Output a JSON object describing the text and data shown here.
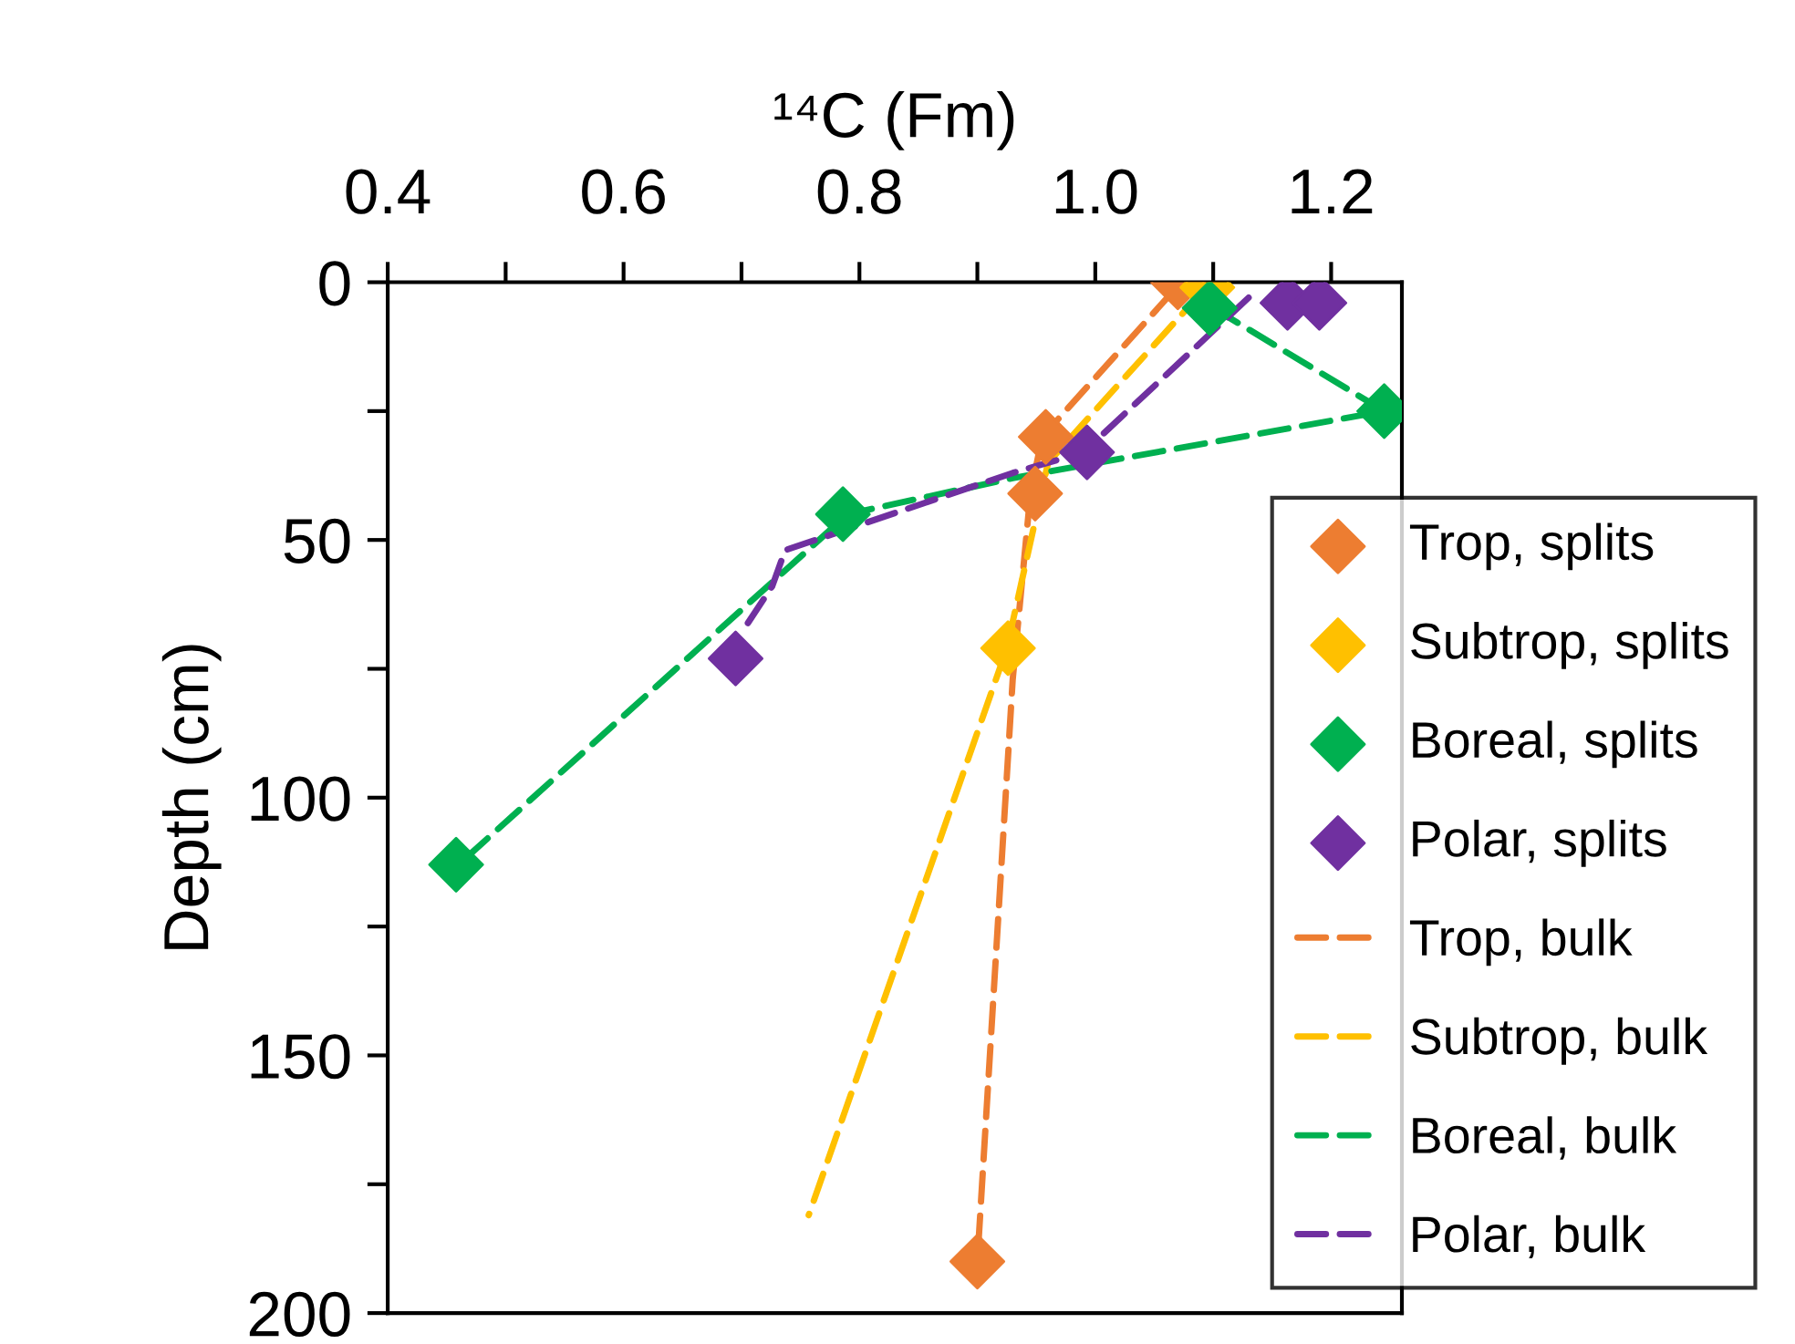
{
  "chart_data": {
    "type": "scatter",
    "xlabel": "¹⁴C (Fm)",
    "ylabel": "Depth (cm)",
    "xlim": [
      0.4,
      1.26
    ],
    "ylim": [
      200,
      0
    ],
    "xticks": [
      0.4,
      {
        "value": 0.5,
        "label": null
      },
      0.6,
      {
        "value": 0.7,
        "label": null
      },
      0.8,
      {
        "value": 0.9,
        "label": null
      },
      "1.0",
      {
        "value": 1.1,
        "label": null
      },
      1.2
    ],
    "yticks": [
      0,
      {
        "value": 25,
        "label": null
      },
      50,
      {
        "value": 75,
        "label": null
      },
      100,
      {
        "value": 125,
        "label": null
      },
      150,
      {
        "value": 175,
        "label": null
      },
      200
    ],
    "grid": false,
    "legend": "bottom right",
    "series": [
      {
        "name": "Trop, splits",
        "marker": "diamond",
        "color": "#ed7d31",
        "x": [
          1.07,
          0.958,
          0.949,
          0.9
        ],
        "values": [
          0,
          30,
          41,
          190
        ]
      },
      {
        "name": "Subtrop, splits",
        "marker": "diamond",
        "color": "#ffc000",
        "x": [
          1.095,
          0.926
        ],
        "values": [
          1,
          71
        ]
      },
      {
        "name": "Boreal, splits",
        "marker": "diamond",
        "color": "#00b050",
        "x": [
          1.097,
          1.245,
          0.786,
          0.458
        ],
        "values": [
          5,
          25,
          45,
          113
        ]
      },
      {
        "name": "Polar, splits",
        "marker": "diamond",
        "color": "#7030a0",
        "x": [
          1.163,
          1.19,
          0.993,
          0.695
        ],
        "values": [
          4,
          4,
          33,
          73
        ]
      },
      {
        "name": "Trop, bulk",
        "type": "line",
        "marker": "none",
        "line_style": "dashed",
        "color": "#ed7d31",
        "x": [
          1.065,
          0.955,
          0.945,
          0.93,
          0.9
        ],
        "values": [
          2,
          30,
          41,
          77,
          190
        ]
      },
      {
        "name": "Subtrop, bulk",
        "type": "line",
        "marker": "none",
        "line_style": "dashed",
        "color": "#ffc000",
        "x": [
          1.09,
          0.96,
          0.925,
          0.757
        ],
        "values": [
          2,
          35,
          71,
          181
        ]
      },
      {
        "name": "Boreal, bulk",
        "type": "line",
        "marker": "none",
        "line_style": "dashed",
        "color": "#00b050",
        "x": [
          1.1,
          1.245,
          0.93,
          0.79,
          0.46
        ],
        "values": [
          5,
          25,
          38,
          45,
          113
        ]
      },
      {
        "name": "Polar, bulk",
        "type": "line",
        "marker": "none",
        "line_style": "dashed",
        "color": "#7030a0",
        "x": [
          1.13,
          0.99,
          0.93,
          0.737,
          0.726,
          0.7
        ],
        "values": [
          3,
          33,
          37,
          52,
          59,
          68
        ]
      }
    ]
  }
}
